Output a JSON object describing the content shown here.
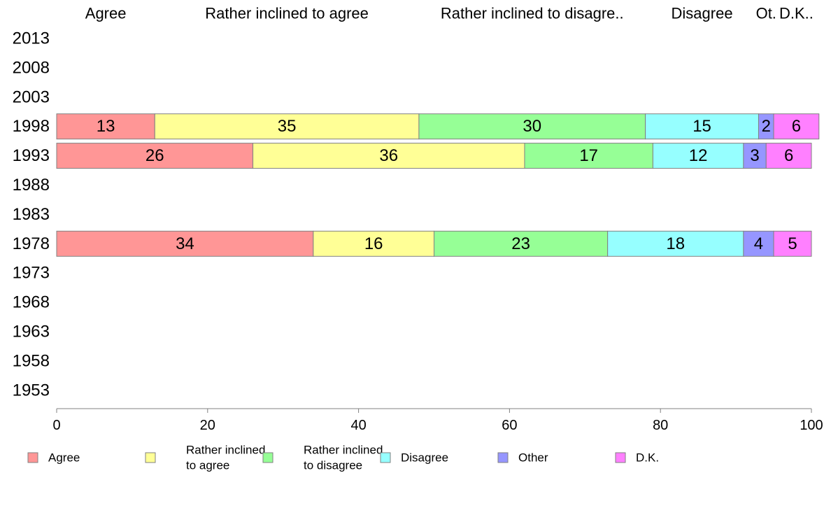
{
  "chart_data": {
    "type": "bar",
    "orientation": "horizontal",
    "stacked": true,
    "column_headers": [
      "Agree",
      "Rather inclined to agree",
      "Rather inclined to disagre..",
      "Disagree",
      "Ot.",
      "D.K.."
    ],
    "years": [
      "2013",
      "2008",
      "2003",
      "1998",
      "1993",
      "1988",
      "1983",
      "1978",
      "1973",
      "1968",
      "1963",
      "1958",
      "1953"
    ],
    "series": [
      {
        "name": "Agree",
        "legend_lines": [
          "Agree"
        ],
        "color": "#ff9696",
        "values": {
          "1998": 13,
          "1993": 26,
          "1978": 34
        }
      },
      {
        "name": "Rather inclined to agree",
        "legend_lines": [
          "Rather inclined",
          "to agree"
        ],
        "color": "#ffff96",
        "values": {
          "1998": 35,
          "1993": 36,
          "1978": 16
        }
      },
      {
        "name": "Rather inclined to disagree",
        "legend_lines": [
          "Rather inclined",
          "to disagree"
        ],
        "color": "#96ff96",
        "values": {
          "1998": 30,
          "1993": 17,
          "1978": 23
        }
      },
      {
        "name": "Disagree",
        "legend_lines": [
          "Disagree"
        ],
        "color": "#96ffff",
        "values": {
          "1998": 15,
          "1993": 12,
          "1978": 18
        }
      },
      {
        "name": "Other",
        "legend_lines": [
          "Other"
        ],
        "color": "#9696ff",
        "values": {
          "1998": 2,
          "1993": 3,
          "1978": 4
        }
      },
      {
        "name": "D.K.",
        "legend_lines": [
          "D.K."
        ],
        "color": "#ff80ff",
        "values": {
          "1998": 6,
          "1993": 6,
          "1978": 5
        }
      }
    ],
    "xlim": [
      0,
      100
    ],
    "xticks": [
      0,
      20,
      40,
      60,
      80,
      100
    ],
    "grid": false,
    "legend_position": "bottom"
  }
}
